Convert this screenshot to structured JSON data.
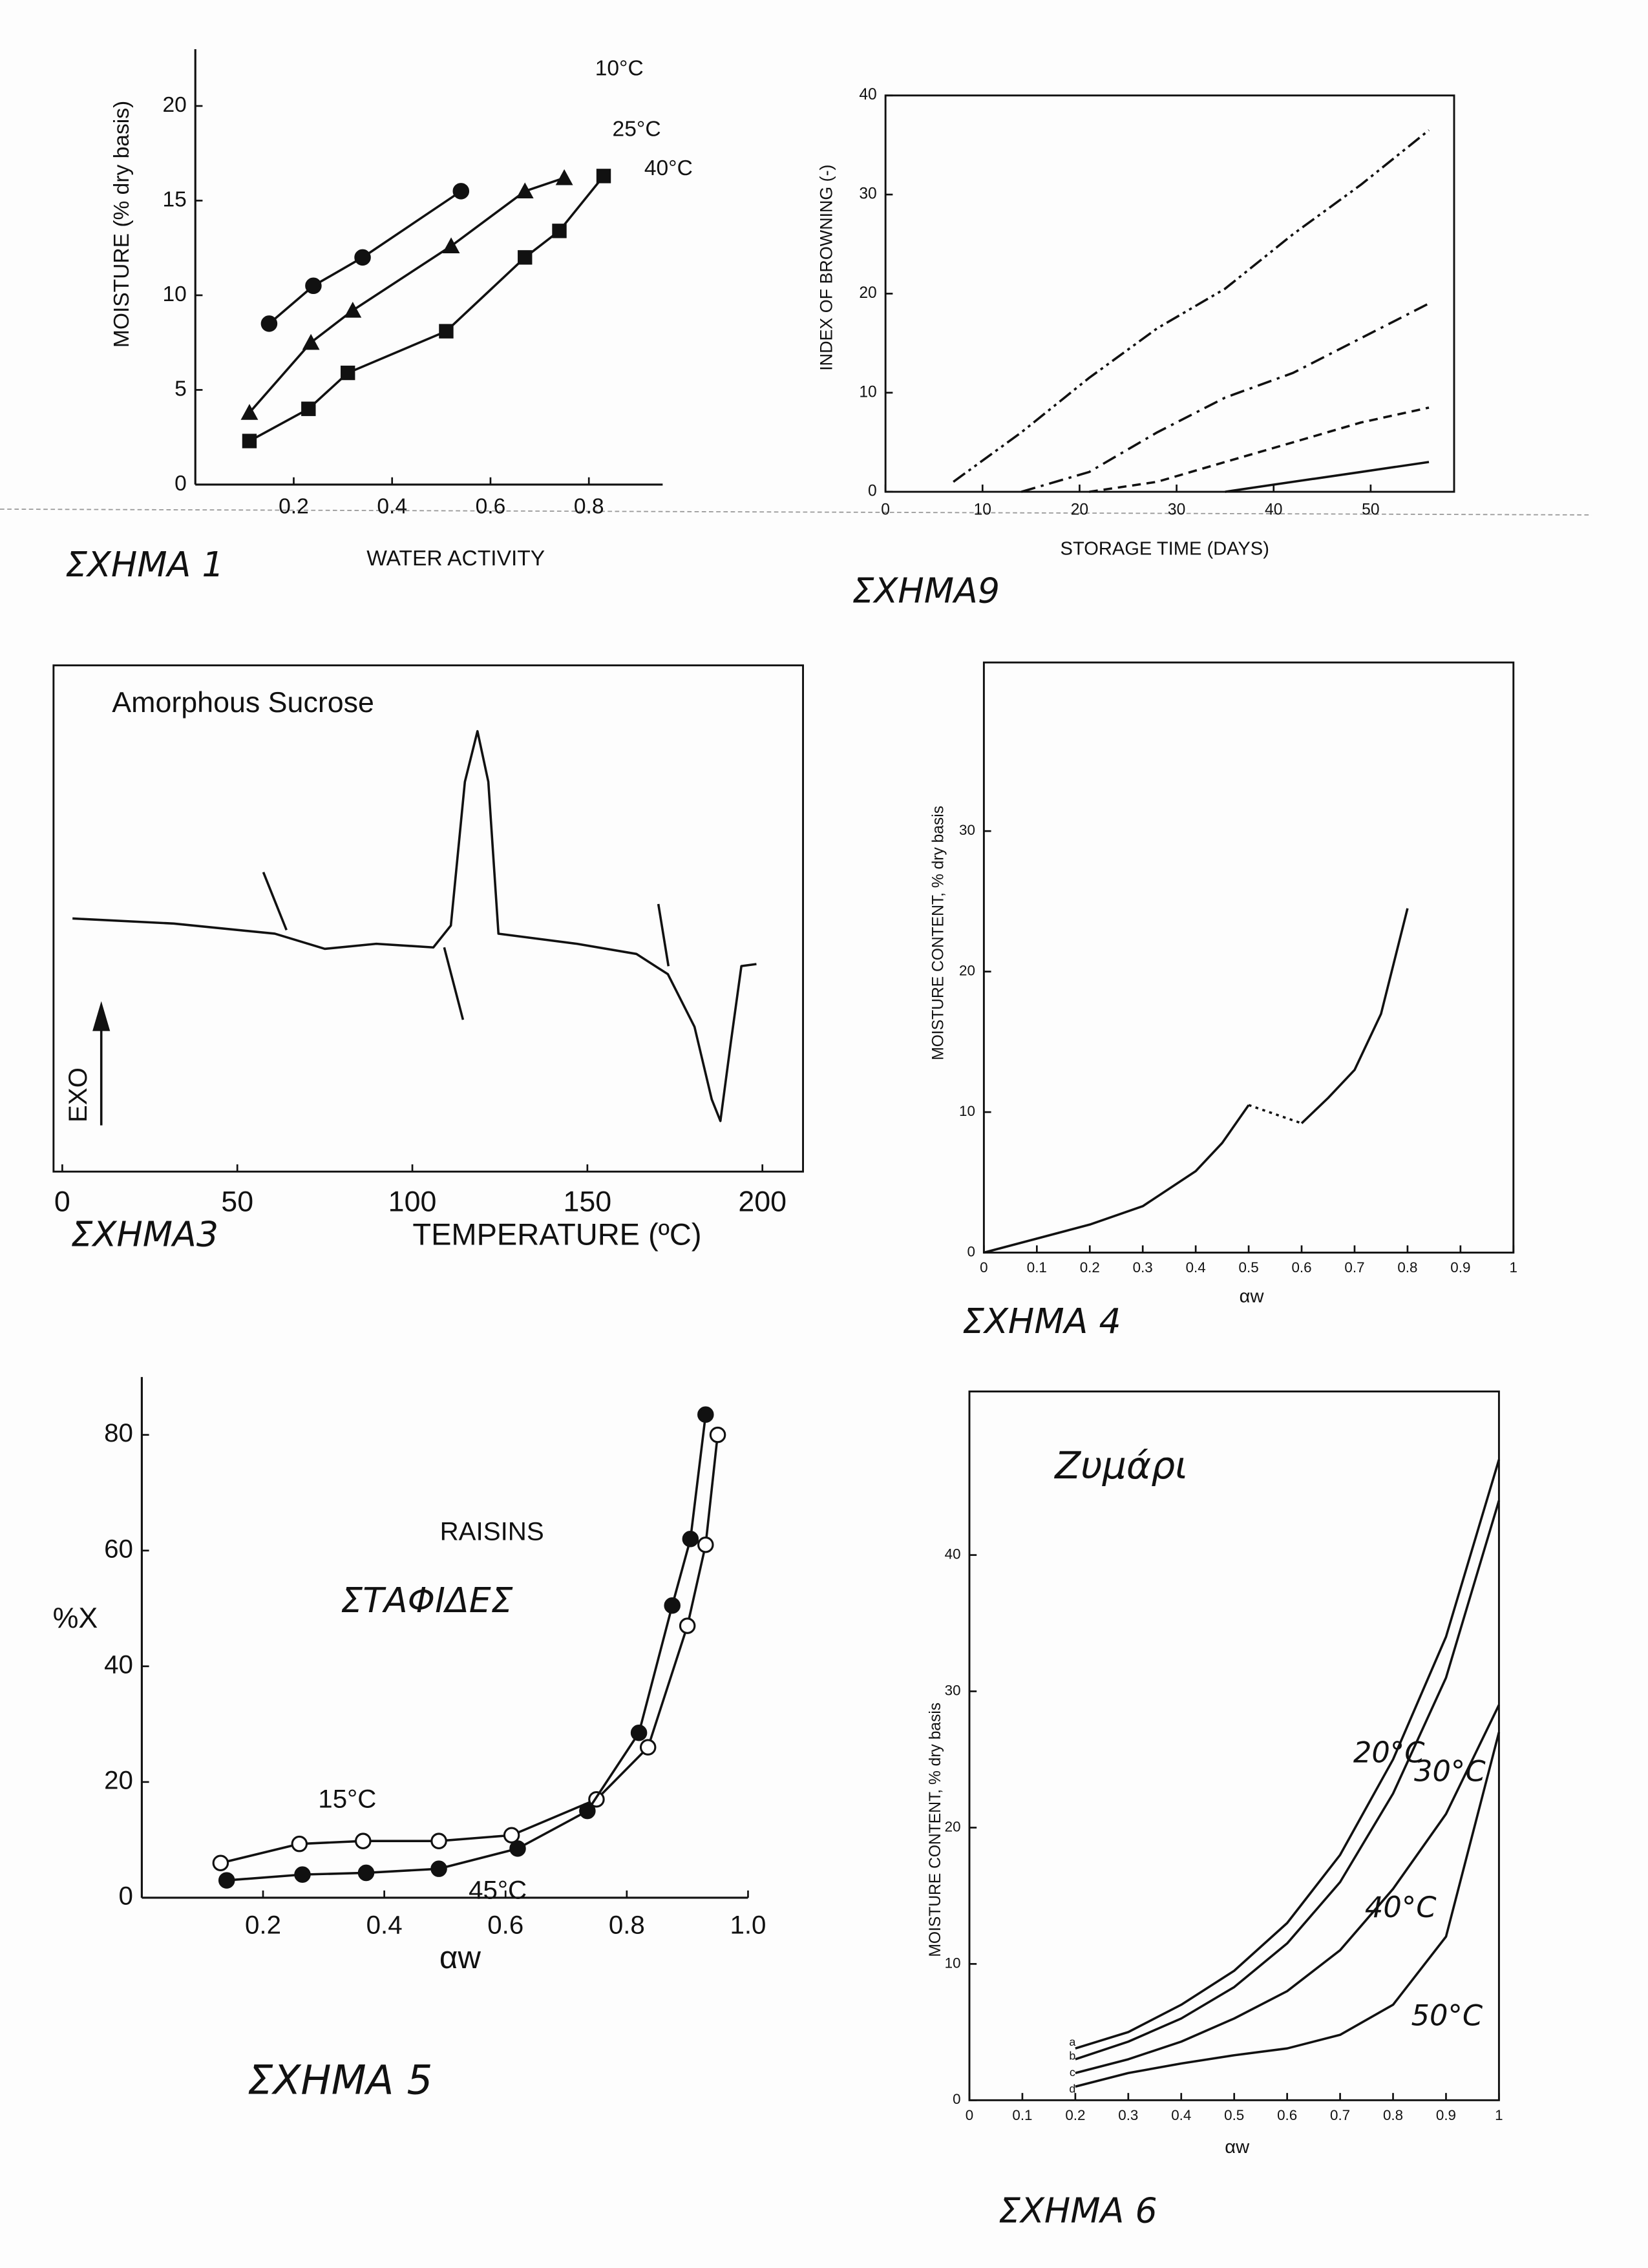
{
  "chart_data": [
    {
      "type": "line",
      "x_label": "WATER ACTIVITY",
      "y_label": "MOISTURE (% dry basis)",
      "caption": "ΣΧΗΜΑ 1",
      "xlim": [
        0,
        0.95
      ],
      "ylim": [
        0,
        23
      ],
      "xticks": [
        0.2,
        0.4,
        0.6,
        0.8
      ],
      "yticks": [
        0,
        5,
        10,
        15,
        20
      ],
      "series": [
        {
          "name": "10°C",
          "marker": "circle",
          "color": "#111111",
          "x": [
            0.15,
            0.24,
            0.34,
            0.54
          ],
          "values": [
            8.5,
            10.5,
            12,
            15.5
          ]
        },
        {
          "name": "25°C",
          "marker": "triangle",
          "color": "#111111",
          "x": [
            0.11,
            0.235,
            0.32,
            0.52,
            0.67,
            0.75
          ],
          "values": [
            3.8,
            7.5,
            9.2,
            12.6,
            15.5,
            16.2
          ]
        },
        {
          "name": "40°C",
          "marker": "square",
          "color": "#111111",
          "x": [
            0.11,
            0.23,
            0.31,
            0.51,
            0.67,
            0.74,
            0.83
          ],
          "values": [
            2.3,
            4,
            5.9,
            8.1,
            12,
            13.4,
            16.3
          ]
        }
      ]
    },
    {
      "type": "line",
      "x_label": "STORAGE TIME (DAYS)",
      "y_label": "INDEX OF BROWNING (-)",
      "caption": "ΣΧΗΜΑ9",
      "xlim": [
        0,
        58.6
      ],
      "ylim": [
        0,
        40
      ],
      "xticks": [
        0,
        10,
        20,
        30,
        40,
        50
      ],
      "yticks": [
        0,
        10,
        20,
        30,
        40
      ],
      "series": [
        {
          "dash": "dashdotdot",
          "color": "#111111",
          "x": [
            7,
            14,
            21,
            28,
            35,
            42,
            49,
            56
          ],
          "values": [
            1,
            6,
            11.5,
            16.5,
            20.5,
            26,
            31,
            36.5
          ]
        },
        {
          "dash": "dashdot",
          "color": "#111111",
          "x": [
            14,
            21,
            28,
            35,
            42,
            49,
            56
          ],
          "values": [
            0,
            2,
            6,
            9.5,
            12,
            15.5,
            19
          ]
        },
        {
          "dash": "dashed",
          "color": "#111111",
          "x": [
            21,
            28,
            35,
            42,
            49,
            56
          ],
          "values": [
            0,
            1,
            3,
            5,
            7,
            8.5
          ]
        },
        {
          "dash": "solid",
          "color": "#111111",
          "x": [
            35,
            42,
            49,
            56
          ],
          "values": [
            0,
            1,
            2,
            3
          ]
        }
      ]
    },
    {
      "type": "line",
      "title": "Amorphous Sucrose",
      "annotation": "EXO",
      "x_label": "TEMPERATURE (ºC)",
      "caption": "ΣΧΗΜΑ3",
      "xlim": [
        -2.5,
        211.6
      ],
      "ylim": [
        0,
        100
      ],
      "xticks": [
        0,
        50,
        100,
        150,
        200
      ],
      "series": [
        {
          "dash": "solid",
          "color": "#111111",
          "x": [
            2.9,
            31.8,
            60.7,
            75,
            89.7,
            106,
            111,
            115,
            118.6,
            121.7,
            124.6,
            147,
            164,
            173,
            180.6,
            185.5,
            188,
            191,
            194,
            198.3
          ],
          "values": [
            50,
            49,
            47,
            44,
            45,
            44.3,
            48.6,
            77,
            87,
            77,
            47,
            45,
            43,
            39,
            28.6,
            14.3,
            10,
            25.7,
            40.6,
            41
          ]
        }
      ]
    },
    {
      "type": "line",
      "x_label": "αw",
      "y_label": "MOISTURE CONTENT, % dry basis",
      "caption": "ΣΧΗΜΑ 4",
      "xlim": [
        0,
        1
      ],
      "ylim": [
        0,
        42
      ],
      "xticks": [
        0,
        0.1,
        0.2,
        0.3,
        0.4,
        0.5,
        0.6,
        0.7,
        0.8,
        0.9,
        1
      ],
      "yticks": [
        0,
        10,
        20,
        30
      ],
      "series": [
        {
          "dash": "solid",
          "color": "#111111",
          "x": [
            0,
            0.1,
            0.2,
            0.3,
            0.4,
            0.45,
            0.5,
            0.55,
            0.6,
            0.65,
            0.7,
            0.75,
            0.8
          ],
          "values": [
            0,
            1,
            2,
            3.3,
            5.8,
            7.8,
            10.5,
            null,
            9.2,
            11,
            13,
            17,
            24.5
          ]
        },
        {
          "dash": "dotted",
          "color": "#111111",
          "x": [
            0.5,
            0.6
          ],
          "values": [
            10.5,
            9.2
          ]
        }
      ]
    },
    {
      "type": "line",
      "title": "RAISINS",
      "subtitle": "ΣΤΑΦΙΔΕΣ",
      "x_label": "αw",
      "y_label": "%X",
      "caption": "ΣΧΗΜΑ 5",
      "xlim": [
        0,
        1
      ],
      "ylim": [
        0,
        90
      ],
      "xticks": [
        0.2,
        0.4,
        0.6,
        0.8,
        {
          "value": 1,
          "label": "1.0"
        }
      ],
      "yticks": [
        0,
        20,
        40,
        60,
        80
      ],
      "series": [
        {
          "name": "15°C",
          "marker": "open-circle",
          "color": "#111111",
          "x": [
            0.13,
            0.26,
            0.365,
            0.49,
            0.61,
            0.75,
            0.835,
            0.9,
            0.93,
            0.95
          ],
          "values": [
            6,
            9.3,
            9.8,
            9.8,
            10.8,
            17,
            26,
            47,
            61,
            80
          ]
        },
        {
          "name": "45°C",
          "marker": "circle",
          "color": "#111111",
          "x": [
            0.14,
            0.265,
            0.37,
            0.49,
            0.62,
            0.735,
            0.82,
            0.875,
            0.905,
            0.93
          ],
          "values": [
            3,
            4,
            4.3,
            5,
            8.5,
            15,
            28.5,
            50.5,
            62,
            83.5
          ]
        }
      ]
    },
    {
      "type": "line",
      "title": "Ζυμάρι",
      "x_label": "αw",
      "y_label": "MOISTURE CONTENT, % dry basis",
      "caption": "ΣΧΗΜΑ 6",
      "xlim": [
        0,
        1
      ],
      "ylim": [
        0,
        52
      ],
      "xticks": [
        0,
        0.1,
        0.2,
        0.3,
        0.4,
        0.5,
        0.6,
        0.7,
        0.8,
        0.9,
        1
      ],
      "yticks": [
        0,
        10,
        20,
        30,
        40
      ],
      "series": [
        {
          "name": "20°C",
          "tag": "a",
          "color": "#111111",
          "x": [
            0.2,
            0.3,
            0.4,
            0.5,
            0.6,
            0.7,
            0.8,
            0.9,
            1
          ],
          "values": [
            3.8,
            5,
            7,
            9.5,
            13,
            18,
            25,
            34,
            47
          ]
        },
        {
          "name": "30°C",
          "tag": "b",
          "color": "#111111",
          "x": [
            0.2,
            0.3,
            0.4,
            0.5,
            0.6,
            0.7,
            0.8,
            0.9,
            1
          ],
          "values": [
            3,
            4.3,
            6,
            8.3,
            11.5,
            16,
            22.5,
            31,
            44
          ]
        },
        {
          "name": "40°C",
          "tag": "c",
          "color": "#111111",
          "x": [
            0.2,
            0.3,
            0.4,
            0.5,
            0.6,
            0.7,
            0.8,
            0.9,
            1
          ],
          "values": [
            2,
            3,
            4.3,
            6,
            8,
            11,
            15.5,
            21,
            29
          ]
        },
        {
          "name": "50°C",
          "tag": "d",
          "color": "#111111",
          "x": [
            0.2,
            0.3,
            0.4,
            0.5,
            0.6,
            0.7,
            0.8,
            0.9,
            1
          ],
          "values": [
            1,
            2,
            2.7,
            3.3,
            3.8,
            4.8,
            7,
            12,
            27
          ]
        }
      ]
    }
  ]
}
